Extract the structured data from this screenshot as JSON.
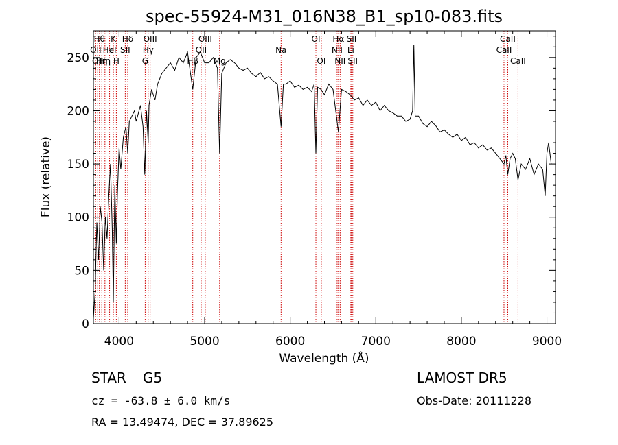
{
  "chart_data": {
    "type": "line",
    "title": "spec-55924-M31_016N38_B1_sp10-083.fits",
    "xlabel": "Wavelength (Å)",
    "ylabel": "Flux (relative)",
    "xlim": [
      3700,
      9100
    ],
    "ylim": [
      0,
      275
    ],
    "x_ticks": [
      4000,
      5000,
      6000,
      7000,
      8000,
      9000
    ],
    "y_ticks": [
      0,
      50,
      100,
      150,
      200,
      250
    ],
    "grid": false,
    "series": [
      {
        "color": "#000000",
        "points": [
          [
            3700,
            5
          ],
          [
            3720,
            30
          ],
          [
            3740,
            95
          ],
          [
            3760,
            60
          ],
          [
            3780,
            110
          ],
          [
            3800,
            95
          ],
          [
            3820,
            50
          ],
          [
            3840,
            100
          ],
          [
            3860,
            80
          ],
          [
            3880,
            120
          ],
          [
            3900,
            150
          ],
          [
            3920,
            90
          ],
          [
            3933,
            20
          ],
          [
            3950,
            130
          ],
          [
            3968,
            75
          ],
          [
            3980,
            120
          ],
          [
            4000,
            165
          ],
          [
            4020,
            145
          ],
          [
            4050,
            175
          ],
          [
            4080,
            185
          ],
          [
            4101,
            160
          ],
          [
            4120,
            190
          ],
          [
            4150,
            195
          ],
          [
            4180,
            200
          ],
          [
            4200,
            190
          ],
          [
            4250,
            205
          ],
          [
            4280,
            185
          ],
          [
            4300,
            140
          ],
          [
            4320,
            200
          ],
          [
            4340,
            170
          ],
          [
            4350,
            205
          ],
          [
            4380,
            220
          ],
          [
            4420,
            210
          ],
          [
            4450,
            225
          ],
          [
            4500,
            235
          ],
          [
            4550,
            240
          ],
          [
            4600,
            245
          ],
          [
            4650,
            238
          ],
          [
            4700,
            250
          ],
          [
            4750,
            245
          ],
          [
            4800,
            255
          ],
          [
            4861,
            220
          ],
          [
            4900,
            250
          ],
          [
            4950,
            255
          ],
          [
            5000,
            245
          ],
          [
            5050,
            245
          ],
          [
            5100,
            250
          ],
          [
            5150,
            240
          ],
          [
            5175,
            160
          ],
          [
            5200,
            235
          ],
          [
            5250,
            245
          ],
          [
            5300,
            248
          ],
          [
            5350,
            245
          ],
          [
            5400,
            240
          ],
          [
            5450,
            238
          ],
          [
            5500,
            240
          ],
          [
            5550,
            235
          ],
          [
            5600,
            232
          ],
          [
            5650,
            236
          ],
          [
            5700,
            230
          ],
          [
            5750,
            232
          ],
          [
            5800,
            228
          ],
          [
            5850,
            225
          ],
          [
            5893,
            185
          ],
          [
            5920,
            225
          ],
          [
            5950,
            225
          ],
          [
            6000,
            228
          ],
          [
            6050,
            222
          ],
          [
            6100,
            224
          ],
          [
            6150,
            220
          ],
          [
            6200,
            222
          ],
          [
            6250,
            218
          ],
          [
            6280,
            225
          ],
          [
            6300,
            160
          ],
          [
            6320,
            222
          ],
          [
            6360,
            220
          ],
          [
            6400,
            215
          ],
          [
            6450,
            225
          ],
          [
            6500,
            220
          ],
          [
            6563,
            180
          ],
          [
            6600,
            220
          ],
          [
            6650,
            218
          ],
          [
            6700,
            215
          ],
          [
            6750,
            210
          ],
          [
            6800,
            212
          ],
          [
            6850,
            205
          ],
          [
            6900,
            210
          ],
          [
            6950,
            205
          ],
          [
            7000,
            208
          ],
          [
            7050,
            200
          ],
          [
            7100,
            205
          ],
          [
            7150,
            200
          ],
          [
            7200,
            198
          ],
          [
            7250,
            195
          ],
          [
            7300,
            195
          ],
          [
            7350,
            190
          ],
          [
            7400,
            192
          ],
          [
            7430,
            200
          ],
          [
            7445,
            262
          ],
          [
            7460,
            195
          ],
          [
            7500,
            195
          ],
          [
            7550,
            188
          ],
          [
            7600,
            185
          ],
          [
            7650,
            190
          ],
          [
            7700,
            186
          ],
          [
            7750,
            180
          ],
          [
            7800,
            182
          ],
          [
            7850,
            178
          ],
          [
            7900,
            175
          ],
          [
            7950,
            178
          ],
          [
            8000,
            172
          ],
          [
            8050,
            175
          ],
          [
            8100,
            168
          ],
          [
            8150,
            170
          ],
          [
            8200,
            165
          ],
          [
            8250,
            168
          ],
          [
            8300,
            163
          ],
          [
            8350,
            165
          ],
          [
            8400,
            160
          ],
          [
            8450,
            155
          ],
          [
            8498,
            150
          ],
          [
            8520,
            158
          ],
          [
            8542,
            140
          ],
          [
            8570,
            155
          ],
          [
            8600,
            160
          ],
          [
            8630,
            155
          ],
          [
            8662,
            135
          ],
          [
            8700,
            150
          ],
          [
            8750,
            145
          ],
          [
            8800,
            155
          ],
          [
            8850,
            140
          ],
          [
            8900,
            150
          ],
          [
            8950,
            145
          ],
          [
            8980,
            120
          ],
          [
            9000,
            160
          ],
          [
            9020,
            170
          ],
          [
            9050,
            150
          ]
        ]
      }
    ],
    "line_markers": {
      "color": "#cc0000",
      "lines": [
        {
          "wavelength": 3727,
          "label": "OII",
          "row": 2
        },
        {
          "wavelength": 3750,
          "label": "OII",
          "row": 3
        },
        {
          "wavelength": 3770,
          "label": "Hθ",
          "row": 1
        },
        {
          "wavelength": 3798,
          "label": "Hη",
          "row": 3
        },
        {
          "wavelength": 3835,
          "label": "Hη",
          "row": 3
        },
        {
          "wavelength": 3889,
          "label": "HeI",
          "row": 2
        },
        {
          "wavelength": 3933,
          "label": "K",
          "row": 1
        },
        {
          "wavelength": 3968,
          "label": "H",
          "row": 3
        },
        {
          "wavelength": 4072,
          "label": "SII",
          "row": 2
        },
        {
          "wavelength": 4101,
          "label": "Hδ",
          "row": 1
        },
        {
          "wavelength": 4305,
          "label": "G",
          "row": 3
        },
        {
          "wavelength": 4340,
          "label": "Hγ",
          "row": 2
        },
        {
          "wavelength": 4363,
          "label": "OIII",
          "row": 1
        },
        {
          "wavelength": 4861,
          "label": "Hβ",
          "row": 3
        },
        {
          "wavelength": 4959,
          "label": "OII",
          "row": 2
        },
        {
          "wavelength": 5007,
          "label": "OIII",
          "row": 1
        },
        {
          "wavelength": 5175,
          "label": "Mg",
          "row": 3
        },
        {
          "wavelength": 5893,
          "label": "Na",
          "row": 2
        },
        {
          "wavelength": 6300,
          "label": "OI",
          "row": 1
        },
        {
          "wavelength": 6363,
          "label": "OI",
          "row": 3
        },
        {
          "wavelength": 6548,
          "label": "NII",
          "row": 2
        },
        {
          "wavelength": 6563,
          "label": "Hα",
          "row": 1
        },
        {
          "wavelength": 6583,
          "label": "NII",
          "row": 3
        },
        {
          "wavelength": 6708,
          "label": "Li",
          "row": 2
        },
        {
          "wavelength": 6717,
          "label": "SII",
          "row": 1
        },
        {
          "wavelength": 6731,
          "label": "SII",
          "row": 3
        },
        {
          "wavelength": 8498,
          "label": "CaII",
          "row": 2
        },
        {
          "wavelength": 8542,
          "label": "CaII",
          "row": 1
        },
        {
          "wavelength": 8662,
          "label": "CaII",
          "row": 3
        }
      ]
    }
  },
  "footer": {
    "object_class": "STAR",
    "subclass": "G5",
    "survey": "LAMOST DR5",
    "cz_text": "cz = -63.8 ± 6.0 km/s",
    "obs_date": "Obs-Date: 20111228",
    "radec": "RA =  13.49474, DEC =  37.89625"
  }
}
